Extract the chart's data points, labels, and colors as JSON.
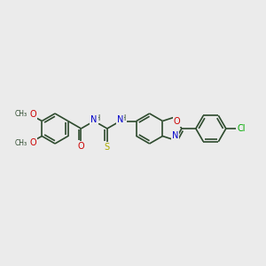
{
  "background_color": "#ebebeb",
  "bond_color": "#2d4a2d",
  "atom_colors": {
    "O": "#cc0000",
    "N": "#0000cc",
    "S": "#aaaa00",
    "Cl": "#00aa00",
    "C": "#2d4a2d",
    "H": "#2d4a2d"
  },
  "figsize": [
    3.0,
    3.0
  ],
  "dpi": 100,
  "lw": 1.2,
  "r_ring": 17,
  "r_ring5": 15
}
